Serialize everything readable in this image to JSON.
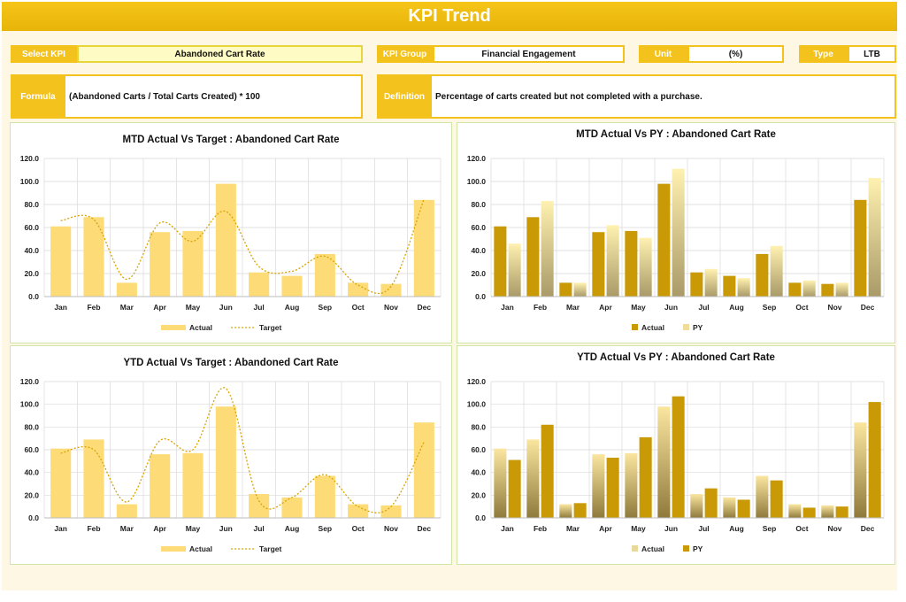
{
  "page_title": "KPI Trend",
  "selectors": {
    "kpi": {
      "label": "Select KPI",
      "value": "Abandoned Cart Rate"
    },
    "group": {
      "label": "KPI Group",
      "value": "Financial Engagement"
    },
    "unit": {
      "label": "Unit",
      "value": "(%)"
    },
    "type": {
      "label": "Type",
      "value": "LTB"
    }
  },
  "formula": {
    "label": "Formula",
    "value": "(Abandoned Carts / Total Carts Created) * 100"
  },
  "definition": {
    "label": "Definition",
    "value": "Percentage of carts created but not completed with a purchase."
  },
  "colors": {
    "accent": "#f4c21c",
    "bar_light": "#fddc78",
    "bar_dark": "#c99a06",
    "line": "#d9a300",
    "grid": "#d9d9d9"
  },
  "chart_data": [
    {
      "type": "bar",
      "title": "MTD Actual Vs Target : Abandoned Cart Rate",
      "categories": [
        "Jan",
        "Feb",
        "Mar",
        "Apr",
        "May",
        "Jun",
        "Jul",
        "Aug",
        "Sep",
        "Oct",
        "Nov",
        "Dec"
      ],
      "series": [
        {
          "name": "Actual",
          "kind": "bar",
          "values": [
            61,
            69,
            12,
            56,
            57,
            98,
            21,
            18,
            37,
            12,
            11,
            84
          ]
        },
        {
          "name": "Target",
          "kind": "line",
          "values": [
            66,
            67,
            15,
            64,
            48,
            74,
            26,
            22,
            35,
            10,
            9,
            85
          ]
        }
      ],
      "ylim": [
        0,
        120
      ],
      "yticks": [
        "0.0",
        "20.0",
        "40.0",
        "60.0",
        "80.0",
        "100.0",
        "120.0"
      ],
      "legend": "bottom"
    },
    {
      "type": "bar",
      "title": "MTD Actual Vs PY : Abandoned Cart Rate",
      "categories": [
        "Jan",
        "Feb",
        "Mar",
        "Apr",
        "May",
        "Jun",
        "Jul",
        "Aug",
        "Sep",
        "Oct",
        "Nov",
        "Dec"
      ],
      "series": [
        {
          "name": "Actual",
          "kind": "bar",
          "values": [
            61,
            69,
            12,
            56,
            57,
            98,
            21,
            18,
            37,
            12,
            11,
            84
          ]
        },
        {
          "name": "PY",
          "kind": "bar",
          "values": [
            46,
            83,
            12,
            62,
            51,
            111,
            24,
            16,
            44,
            14,
            12,
            103
          ]
        }
      ],
      "ylim": [
        0,
        120
      ],
      "yticks": [
        "0.0",
        "20.0",
        "40.0",
        "60.0",
        "80.0",
        "100.0",
        "120.0"
      ],
      "legend": "bottom"
    },
    {
      "type": "bar",
      "title": "YTD Actual Vs Target : Abandoned Cart Rate",
      "categories": [
        "Jan",
        "Feb",
        "Mar",
        "Apr",
        "May",
        "Jun",
        "Jul",
        "Aug",
        "Sep",
        "Oct",
        "Nov",
        "Dec"
      ],
      "series": [
        {
          "name": "Actual",
          "kind": "bar",
          "values": [
            61,
            69,
            12,
            56,
            57,
            98,
            21,
            18,
            37,
            12,
            11,
            84
          ]
        },
        {
          "name": "Target",
          "kind": "line",
          "values": [
            57,
            60,
            14,
            68,
            60,
            114,
            15,
            18,
            38,
            10,
            10,
            67
          ]
        }
      ],
      "ylim": [
        0,
        120
      ],
      "yticks": [
        "0.0",
        "20.0",
        "40.0",
        "60.0",
        "80.0",
        "100.0",
        "120.0"
      ],
      "legend": "bottom"
    },
    {
      "type": "bar",
      "title": "YTD Actual Vs PY : Abandoned Cart Rate",
      "categories": [
        "Jan",
        "Feb",
        "Mar",
        "Apr",
        "May",
        "Jun",
        "Jul",
        "Aug",
        "Sep",
        "Oct",
        "Nov",
        "Dec"
      ],
      "series": [
        {
          "name": "Actual",
          "kind": "bar",
          "values": [
            61,
            69,
            12,
            56,
            57,
            98,
            21,
            18,
            37,
            12,
            11,
            84
          ]
        },
        {
          "name": "PY",
          "kind": "bar",
          "values": [
            51,
            82,
            13,
            53,
            71,
            107,
            26,
            16,
            33,
            9,
            10,
            102
          ]
        }
      ],
      "ylim": [
        0,
        120
      ],
      "yticks": [
        "0.0",
        "20.0",
        "40.0",
        "60.0",
        "80.0",
        "100.0",
        "120.0"
      ],
      "legend": "bottom"
    }
  ]
}
